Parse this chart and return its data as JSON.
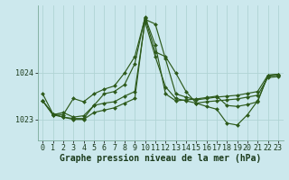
{
  "background_color": "#cce8ed",
  "grid_color": "#b0d4d4",
  "line_color": "#2d5a1b",
  "marker_color": "#2d5a1b",
  "xlabel": "Graphe pression niveau de la mer (hPa)",
  "xlabel_fontsize": 7,
  "tick_fontsize": 6,
  "xlim": [
    -0.5,
    23.5
  ],
  "ylim": [
    1022.55,
    1025.45
  ],
  "yticks": [
    1023,
    1024
  ],
  "xticks": [
    0,
    1,
    2,
    3,
    4,
    5,
    6,
    7,
    8,
    9,
    10,
    11,
    12,
    13,
    14,
    15,
    16,
    17,
    18,
    19,
    20,
    21,
    22,
    23
  ],
  "series": [
    [
      1023.4,
      1023.1,
      1023.15,
      1023.05,
      1023.08,
      1023.3,
      1023.35,
      1023.38,
      1023.5,
      1023.6,
      1025.1,
      1024.35,
      1023.7,
      1023.45,
      1023.4,
      1023.35,
      1023.38,
      1023.4,
      1023.42,
      1023.44,
      1023.48,
      1023.52,
      1023.9,
      1023.92
    ],
    [
      1023.4,
      1023.1,
      1023.05,
      1023.0,
      1023.0,
      1023.15,
      1023.2,
      1023.25,
      1023.35,
      1023.45,
      1025.15,
      1025.05,
      1024.3,
      1023.55,
      1023.48,
      1023.42,
      1023.45,
      1023.48,
      1023.5,
      1023.52,
      1023.56,
      1023.6,
      1023.95,
      1023.97
    ],
    [
      1023.55,
      1023.12,
      1023.05,
      1023.02,
      1023.02,
      1023.3,
      1023.55,
      1023.6,
      1023.75,
      1024.2,
      1025.2,
      1024.6,
      1023.55,
      1023.4,
      1023.42,
      1023.44,
      1023.47,
      1023.5,
      1023.3,
      1023.28,
      1023.32,
      1023.38,
      1023.95,
      1023.97
    ],
    [
      1023.4,
      1023.12,
      1023.1,
      1023.45,
      1023.38,
      1023.55,
      1023.65,
      1023.72,
      1024.0,
      1024.35,
      1025.18,
      1024.45,
      1024.35,
      1024.0,
      1023.6,
      1023.35,
      1023.28,
      1023.22,
      1022.92,
      1022.88,
      1023.1,
      1023.4,
      1023.93,
      1023.95
    ]
  ]
}
